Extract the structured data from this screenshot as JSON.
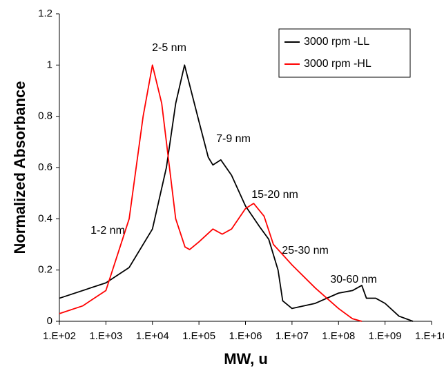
{
  "chart_data": {
    "type": "line",
    "xlabel": "MW, u",
    "ylabel": "Normalized Absorbance",
    "xscale": "log",
    "xlim": [
      100,
      10000000000
    ],
    "xticks": [
      {
        "value": 100,
        "label": "1.E+02"
      },
      {
        "value": 1000,
        "label": "1.E+03"
      },
      {
        "value": 10000,
        "label": "1.E+04"
      },
      {
        "value": 100000,
        "label": "1.E+05"
      },
      {
        "value": 1000000,
        "label": "1.E+06"
      },
      {
        "value": 10000000,
        "label": "1.E+07"
      },
      {
        "value": 100000000,
        "label": "1.E+08"
      },
      {
        "value": 1000000000,
        "label": "1.E+09"
      },
      {
        "value": 10000000000,
        "label": "1.E+10"
      }
    ],
    "ylim": [
      0,
      1.2
    ],
    "yticks": [
      0,
      0.2,
      0.4,
      0.6,
      0.8,
      1,
      1.2
    ],
    "grid": false,
    "legend": "upper right",
    "series": [
      {
        "name": "3000 rpm -LL",
        "color": "#000000",
        "x": [
          100,
          1000,
          3162,
          10000,
          19953,
          31623,
          49000,
          100000,
          158489,
          199526,
          295000,
          501187,
          1000000,
          1995262,
          3162278,
          5011872,
          6309573,
          10000000,
          31622777,
          100000000,
          199526231,
          316227766,
          398107171,
          630957344,
          1000000000,
          1995262315,
          3981071706
        ],
        "values": [
          0.09,
          0.15,
          0.21,
          0.36,
          0.6,
          0.85,
          1,
          0.78,
          0.64,
          0.61,
          0.63,
          0.57,
          0.45,
          0.37,
          0.32,
          0.2,
          0.08,
          0.05,
          0.07,
          0.11,
          0.12,
          0.14,
          0.09,
          0.09,
          0.07,
          0.02,
          0
        ]
      },
      {
        "name": "3000 rpm -HL",
        "color": "#ff0000",
        "x": [
          100,
          316,
          1000,
          3162,
          6310,
          10000,
          15849,
          31623,
          50119,
          63096,
          100000,
          199526,
          316228,
          501187,
          1000000,
          1500000,
          2511886,
          3981072,
          10000000,
          31622777,
          100000000,
          199526231,
          316227766
        ],
        "values": [
          0.03,
          0.06,
          0.12,
          0.4,
          0.8,
          1,
          0.85,
          0.4,
          0.29,
          0.28,
          0.31,
          0.36,
          0.34,
          0.36,
          0.44,
          0.46,
          0.41,
          0.3,
          0.22,
          0.13,
          0.05,
          0.01,
          0
        ]
      }
    ],
    "annotations": [
      "2-5 nm",
      "7-9 nm",
      "15-20 nm",
      "1-2 nm",
      "25-30 nm",
      "30-60 nm"
    ]
  }
}
